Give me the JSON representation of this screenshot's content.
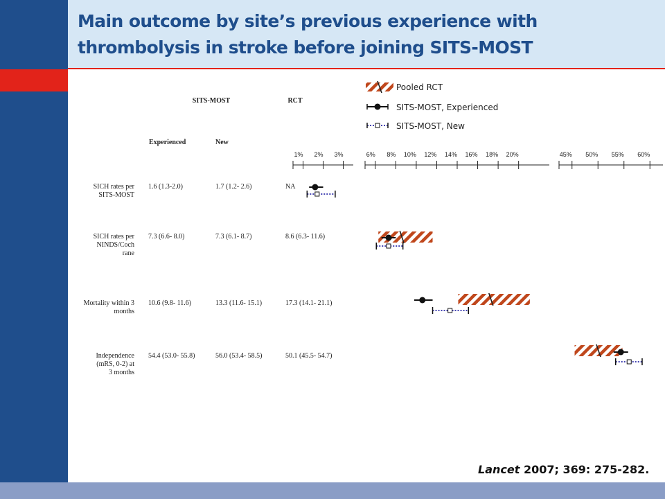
{
  "title": "Main outcome by site’s  previous experience with thrombolysis in stroke before joining  SITS-MOST",
  "citation": {
    "journal": "Lancet",
    "detail": " 2007; 369: 275-282."
  },
  "table": {
    "group_headers": [
      "SITS-MOST",
      "RCT"
    ],
    "column_headers": [
      "Experienced",
      "New"
    ],
    "rows": [
      {
        "label": [
          "SICH rates per",
          "SITS-MOST"
        ],
        "experienced": "1.6 (1.3-2.0)",
        "new": "1.7 (1.2- 2.6)",
        "rct": "NA"
      },
      {
        "label": [
          "SICH rates per",
          "NINDS/Coch",
          "rane"
        ],
        "experienced": "7.3 (6.6- 8.0)",
        "new": "7.3 (6.1- 8.7)",
        "rct": "8.6 (6.3- 11.6)"
      },
      {
        "label": [
          "Mortality within 3",
          "months"
        ],
        "experienced": "10.6 (9.8- 11.6)",
        "new": "13.3 (11.6- 15.1)",
        "rct": "17.3 (14.1- 21.1)"
      },
      {
        "label": [
          "Independence",
          "(mRS, 0-2) at",
          "3 months"
        ],
        "experienced": "54.4 (53.0- 55.8)",
        "new": "56.0 (53.4- 58.5)",
        "rct": "50.1 (45.5- 54.7)"
      }
    ]
  },
  "chart_data": {
    "type": "forest",
    "legend": [
      "Pooled RCT",
      "SITS-MOST, Experienced",
      "SITS-MOST, New"
    ],
    "colors": {
      "rct": "#c0471c",
      "experienced": "#111111",
      "new": "#2a2aa8"
    },
    "axes": [
      {
        "ticks": [
          1,
          2,
          3
        ],
        "tick_labels": [
          "1%",
          "2%",
          "3%"
        ],
        "range": [
          0.5,
          3.5
        ]
      },
      {
        "ticks": [
          6,
          8,
          10,
          12,
          14,
          16,
          18,
          20
        ],
        "tick_labels": [
          "6%",
          "8%",
          "10%",
          "12%",
          "14%",
          "16%",
          "18%",
          "20%"
        ],
        "range": [
          5,
          23
        ]
      },
      {
        "ticks": [
          45,
          50,
          55,
          60
        ],
        "tick_labels": [
          "45%",
          "50%",
          "55%",
          "60%"
        ],
        "range": [
          42.5,
          62.5
        ]
      }
    ],
    "outcomes": [
      {
        "axis": 0,
        "experienced": {
          "est": 1.6,
          "lo": 1.3,
          "hi": 2.0
        },
        "new": {
          "est": 1.7,
          "lo": 1.2,
          "hi": 2.6
        },
        "rct": null
      },
      {
        "axis": 1,
        "experienced": {
          "est": 7.3,
          "lo": 6.6,
          "hi": 8.0
        },
        "new": {
          "est": 7.3,
          "lo": 6.1,
          "hi": 8.7
        },
        "rct": {
          "est": 8.6,
          "lo": 6.3,
          "hi": 11.6
        }
      },
      {
        "axis": 1,
        "experienced": {
          "est": 10.6,
          "lo": 9.8,
          "hi": 11.6
        },
        "new": {
          "est": 13.3,
          "lo": 11.6,
          "hi": 15.1
        },
        "rct": {
          "est": 17.3,
          "lo": 14.1,
          "hi": 21.1
        }
      },
      {
        "axis": 2,
        "experienced": {
          "est": 54.4,
          "lo": 53.0,
          "hi": 55.8
        },
        "new": {
          "est": 56.0,
          "lo": 53.4,
          "hi": 58.5
        },
        "rct": {
          "est": 50.1,
          "lo": 45.5,
          "hi": 54.7
        }
      }
    ]
  }
}
